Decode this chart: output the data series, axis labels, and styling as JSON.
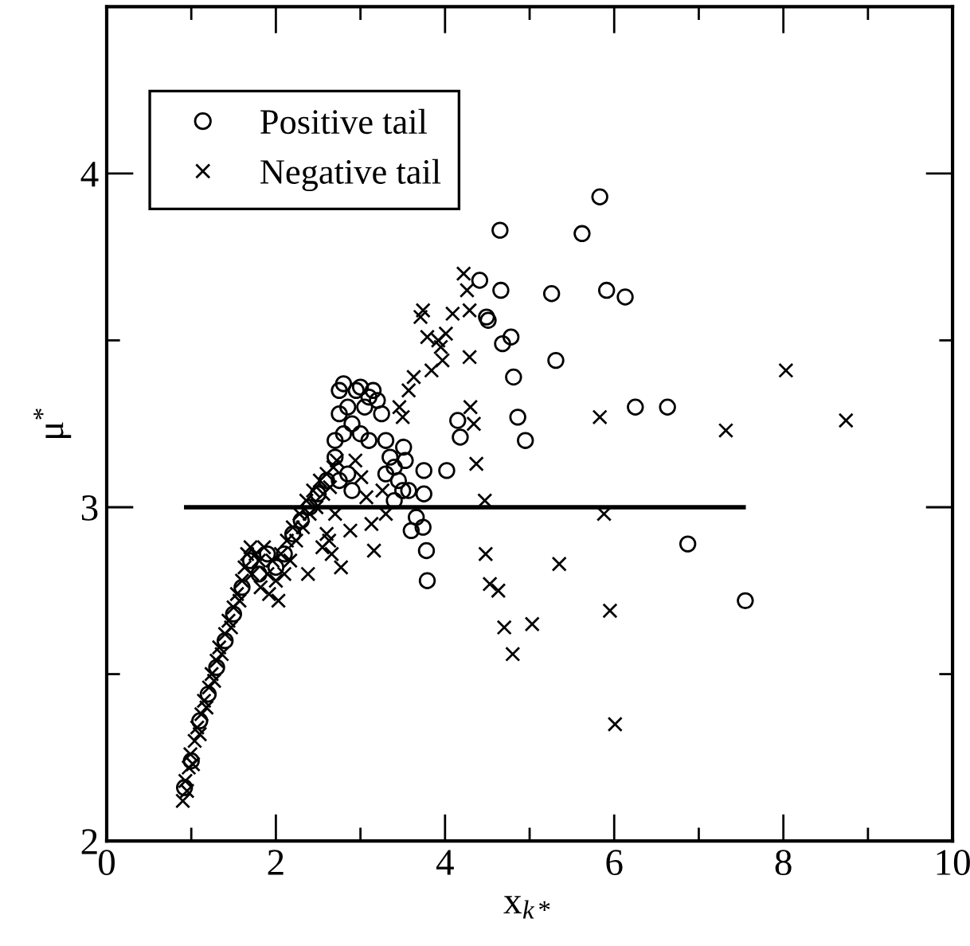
{
  "chart_data": {
    "type": "scatter",
    "xlabel": "x$_{k*}$",
    "ylabel": "μ$^{*}$",
    "xlim": [
      0,
      10
    ],
    "ylim": [
      2,
      4.5
    ],
    "xticks": [
      0,
      {
        "value": 1,
        "label": null
      },
      2,
      {
        "value": 3,
        "label": null
      },
      4,
      {
        "value": 5,
        "label": null
      },
      6,
      {
        "value": 7,
        "label": null
      },
      8,
      {
        "value": 9,
        "label": null
      },
      10
    ],
    "yticks": [
      2,
      {
        "value": 2.5,
        "label": null
      },
      3,
      {
        "value": 3.5,
        "label": null
      },
      4
    ],
    "grid": false,
    "legend": "top left",
    "series": [
      {
        "name": "Positive tail",
        "color": "#000000",
        "marker": "circle",
        "x": [
          5.83,
          5.62,
          5.26,
          5.91,
          6.13,
          5.31,
          6.25,
          6.63,
          6.87,
          7.55,
          4.95,
          4.65,
          4.66,
          4.41,
          4.49,
          4.51,
          4.78,
          4.68,
          4.81,
          4.86,
          4.15,
          4.18,
          4.02,
          3.75,
          3.75,
          3.74,
          3.66,
          3.6,
          3.78,
          3.79,
          3.57,
          3.53,
          3.51,
          2.75,
          2.8,
          2.85,
          2.9,
          2.95,
          3.0,
          3.05,
          3.1,
          3.15,
          3.2,
          3.25,
          2.75,
          2.8,
          3.0,
          3.1,
          3.3,
          3.35,
          3.4,
          3.45,
          3.5,
          3.3,
          3.4,
          2.7,
          2.75,
          2.85,
          2.9,
          0.92,
          1.0,
          1.1,
          1.2,
          1.3,
          1.4,
          1.5,
          1.6,
          1.7,
          1.8,
          1.9,
          2.0,
          2.1,
          2.2,
          2.3,
          2.4,
          2.5,
          2.6,
          2.7
        ],
        "values": [
          3.93,
          3.82,
          3.64,
          3.65,
          3.63,
          3.44,
          3.3,
          3.3,
          2.89,
          2.72,
          3.2,
          3.83,
          3.65,
          3.68,
          3.57,
          3.56,
          3.51,
          3.49,
          3.39,
          3.27,
          3.26,
          3.21,
          3.11,
          3.11,
          3.04,
          2.94,
          2.97,
          2.93,
          2.87,
          2.78,
          3.05,
          3.14,
          3.18,
          3.35,
          3.37,
          3.3,
          3.25,
          3.35,
          3.36,
          3.3,
          3.33,
          3.35,
          3.32,
          3.28,
          3.28,
          3.22,
          3.22,
          3.2,
          3.2,
          3.15,
          3.12,
          3.08,
          3.05,
          3.1,
          3.02,
          3.15,
          3.08,
          3.1,
          3.05,
          2.16,
          2.24,
          2.36,
          2.44,
          2.52,
          2.6,
          2.68,
          2.76,
          2.84,
          2.8,
          2.86,
          2.82,
          2.86,
          2.92,
          2.96,
          3.0,
          3.04,
          3.08,
          3.2
        ]
      },
      {
        "name": "Negative tail",
        "color": "#000000",
        "marker": "cross",
        "x": [
          8.03,
          8.74,
          5.83,
          7.32,
          5.88,
          5.35,
          5.95,
          5.03,
          6.01,
          4.22,
          4.26,
          4.09,
          4.29,
          3.74,
          3.71,
          4.01,
          3.79,
          3.92,
          3.95,
          4.29,
          3.97,
          3.84,
          3.63,
          3.57,
          3.46,
          3.5,
          4.3,
          4.34,
          4.37,
          4.47,
          4.48,
          4.53,
          4.63,
          4.7,
          4.8,
          3.16,
          2.77,
          3.13,
          3.3,
          3.01,
          2.94,
          3.07,
          2.88,
          2.63,
          2.38,
          3.26,
          0.9,
          0.93,
          0.95,
          0.97,
          0.99,
          1.02,
          1.04,
          1.07,
          1.1,
          1.12,
          1.15,
          1.18,
          1.21,
          1.24,
          1.27,
          1.3,
          1.33,
          1.36,
          1.4,
          1.44,
          1.47,
          1.5,
          1.54,
          1.57,
          1.6,
          1.63,
          1.66,
          1.7,
          1.72,
          1.76,
          1.8,
          1.82,
          1.86,
          1.9,
          1.92,
          1.96,
          2.0,
          2.03,
          2.06,
          2.1,
          2.13,
          2.17,
          2.2,
          2.24,
          2.28,
          2.32,
          2.36,
          2.4,
          2.44,
          2.48,
          2.52,
          2.56,
          2.6,
          2.64,
          2.68,
          2.72,
          2.7,
          2.6,
          2.55,
          2.66
        ],
        "values": [
          3.41,
          3.26,
          3.27,
          3.23,
          2.98,
          2.83,
          2.69,
          2.65,
          2.35,
          3.7,
          3.65,
          3.58,
          3.59,
          3.59,
          3.57,
          3.52,
          3.51,
          3.5,
          3.48,
          3.45,
          3.44,
          3.41,
          3.39,
          3.35,
          3.3,
          3.27,
          3.3,
          3.25,
          3.13,
          3.02,
          2.86,
          2.77,
          2.75,
          2.64,
          2.56,
          2.87,
          2.82,
          2.95,
          2.98,
          3.09,
          3.14,
          3.03,
          2.93,
          2.9,
          2.8,
          3.05,
          2.12,
          2.18,
          2.15,
          2.22,
          2.26,
          2.23,
          2.3,
          2.34,
          2.32,
          2.38,
          2.42,
          2.4,
          2.46,
          2.5,
          2.48,
          2.54,
          2.58,
          2.56,
          2.62,
          2.66,
          2.64,
          2.7,
          2.74,
          2.72,
          2.78,
          2.82,
          2.86,
          2.88,
          2.8,
          2.86,
          2.84,
          2.76,
          2.88,
          2.8,
          2.74,
          2.84,
          2.78,
          2.72,
          2.86,
          2.8,
          2.9,
          2.84,
          2.94,
          2.9,
          2.98,
          2.94,
          3.02,
          2.98,
          3.05,
          3.0,
          3.08,
          3.04,
          3.1,
          3.06,
          3.12,
          3.14,
          2.98,
          2.92,
          2.88,
          2.86
        ]
      },
      {
        "type": "line",
        "color": "#000000",
        "marker": "none",
        "line_style": "solid",
        "x": [
          0.94,
          7.53
        ],
        "values": [
          3,
          3
        ]
      }
    ]
  }
}
